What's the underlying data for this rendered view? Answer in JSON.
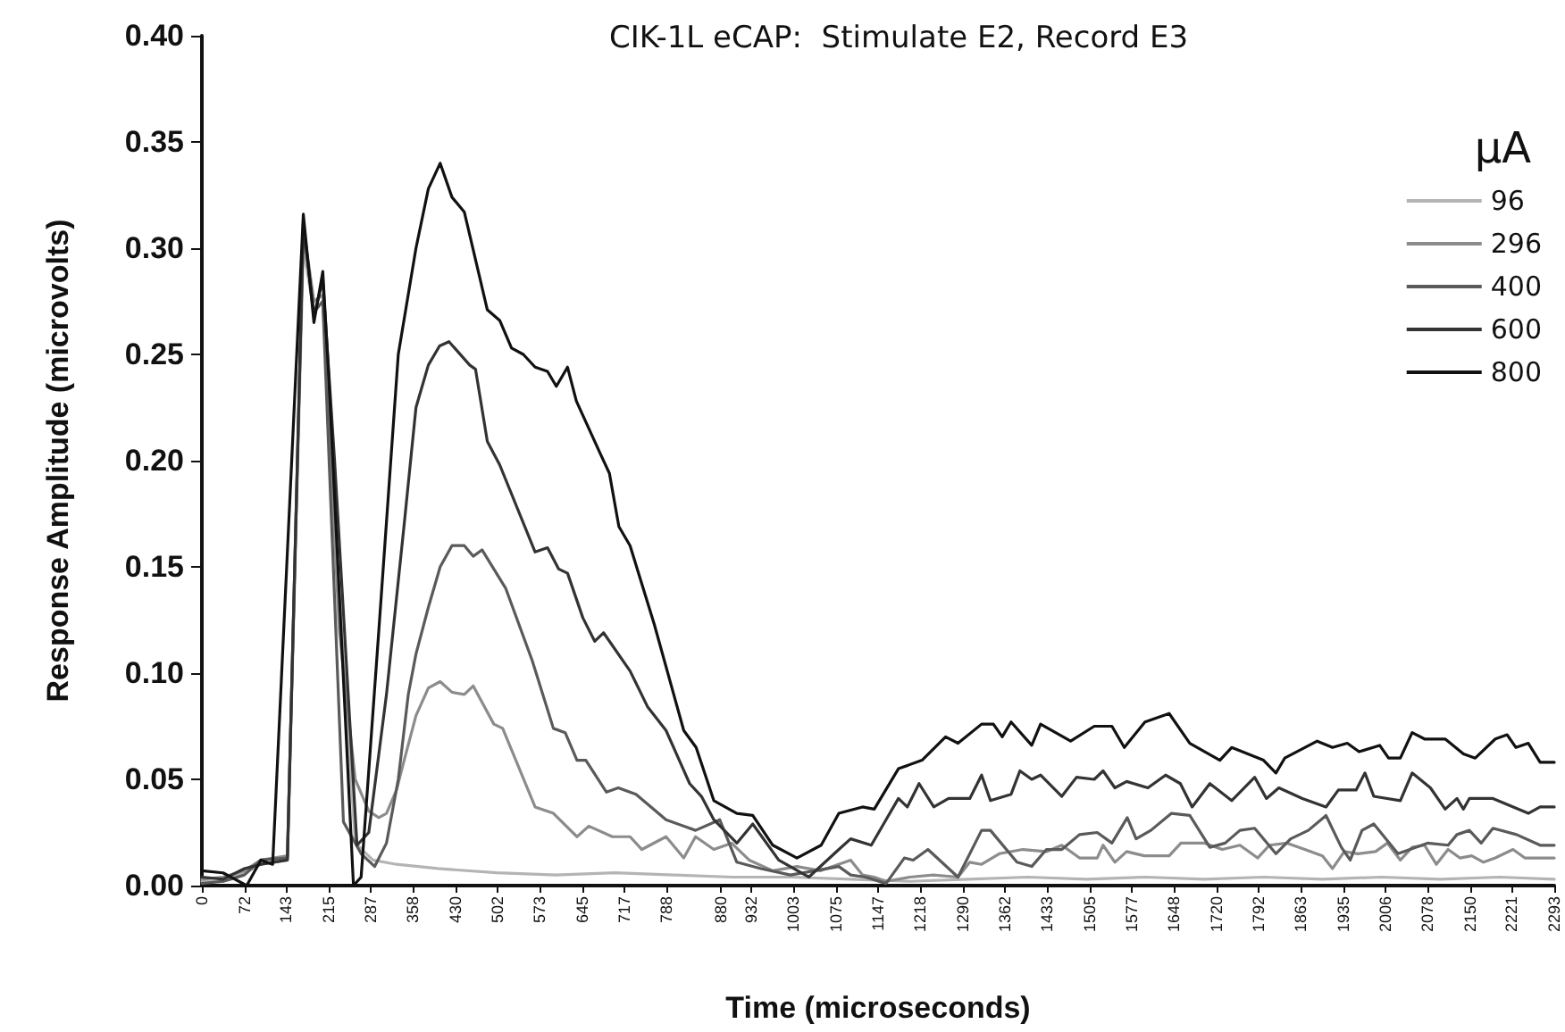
{
  "chart_data": {
    "type": "line",
    "title": "CIK-1L eCAP:  Stimulate E2, Record E3",
    "xlabel": "Time (microseconds)",
    "ylabel": "Response Amplitude (microvolts)",
    "legend_title": "μA",
    "legend": "top right",
    "grid": false,
    "marker": "none",
    "line_style": "solid",
    "xlim": [
      0,
      2293
    ],
    "ylim": [
      0,
      0.4
    ],
    "xticks": [
      0,
      72,
      143,
      215,
      287,
      358,
      430,
      502,
      573,
      645,
      717,
      788,
      880,
      932,
      1003,
      1075,
      1147,
      1218,
      1290,
      1362,
      1433,
      1505,
      1577,
      1648,
      1720,
      1792,
      1863,
      1935,
      2006,
      2078,
      2150,
      2221,
      2293
    ],
    "yticks": [
      {
        "value": 0,
        "label": "0.00"
      },
      0.05,
      {
        "value": 0.1,
        "label": "0.10"
      },
      0.15,
      {
        "value": 0.2,
        "label": "0.20"
      },
      0.25,
      {
        "value": 0.3,
        "label": "0.30"
      },
      0.35,
      {
        "value": 0.4,
        "label": "0.40"
      }
    ],
    "series": [
      {
        "name": "96",
        "color": "#b4b4b4",
        "x": [
          0,
          36,
          72,
          100,
          145,
          172,
          190,
          205,
          230,
          260,
          290,
          330,
          400,
          500,
          600,
          700,
          800,
          900,
          1000,
          1100,
          1200,
          1300,
          1400,
          1500,
          1600,
          1700,
          1800,
          1900,
          2000,
          2100,
          2200,
          2293
        ],
        "values": [
          0.002,
          0.002,
          0.006,
          0.01,
          0.012,
          0.3,
          0.27,
          0.275,
          0.15,
          0.02,
          0.012,
          0.01,
          0.008,
          0.006,
          0.005,
          0.006,
          0.005,
          0.004,
          0.004,
          0.003,
          0.002,
          0.003,
          0.004,
          0.003,
          0.004,
          0.003,
          0.004,
          0.003,
          0.004,
          0.003,
          0.004,
          0.003
        ]
      },
      {
        "name": "296",
        "color": "#8c8c8c",
        "x": [
          0,
          36,
          72,
          100,
          145,
          172,
          190,
          205,
          233,
          260,
          283,
          300,
          313,
          330,
          343,
          363,
          384,
          404,
          424,
          445,
          460,
          495,
          510,
          565,
          596,
          636,
          656,
          696,
          726,
          746,
          787,
          817,
          837,
          868,
          898,
          928,
          968,
          1009,
          1049,
          1100,
          1120,
          1140,
          1160,
          1200,
          1240,
          1282,
          1302,
          1322,
          1352,
          1392,
          1432,
          1458,
          1488,
          1518,
          1528,
          1548,
          1568,
          1598,
          1640,
          1660,
          1700,
          1730,
          1760,
          1790,
          1810,
          1840,
          1870,
          1900,
          1917,
          1937,
          1960,
          1990,
          2010,
          2032,
          2052,
          2073,
          2093,
          2113,
          2133,
          2153,
          2173,
          2193,
          2223,
          2243,
          2293
        ],
        "values": [
          0.003,
          0.004,
          0.007,
          0.012,
          0.014,
          0.31,
          0.275,
          0.278,
          0.12,
          0.05,
          0.035,
          0.032,
          0.034,
          0.045,
          0.059,
          0.08,
          0.093,
          0.096,
          0.091,
          0.09,
          0.094,
          0.076,
          0.074,
          0.037,
          0.034,
          0.023,
          0.028,
          0.023,
          0.023,
          0.017,
          0.023,
          0.013,
          0.023,
          0.017,
          0.02,
          0.012,
          0.007,
          0.009,
          0.007,
          0.012,
          0.005,
          0.004,
          0.002,
          0.004,
          0.005,
          0.004,
          0.011,
          0.01,
          0.015,
          0.017,
          0.016,
          0.019,
          0.013,
          0.013,
          0.019,
          0.011,
          0.016,
          0.014,
          0.014,
          0.02,
          0.02,
          0.017,
          0.019,
          0.013,
          0.019,
          0.02,
          0.017,
          0.014,
          0.008,
          0.016,
          0.015,
          0.016,
          0.02,
          0.012,
          0.018,
          0.019,
          0.01,
          0.017,
          0.013,
          0.014,
          0.011,
          0.013,
          0.017,
          0.013,
          0.013
        ]
      },
      {
        "name": "400",
        "color": "#5a5a5a",
        "x": [
          0,
          36,
          72,
          100,
          145,
          172,
          190,
          205,
          240,
          270,
          293,
          313,
          333,
          350,
          363,
          384,
          404,
          424,
          445,
          460,
          475,
          515,
          560,
          596,
          616,
          636,
          651,
          686,
          706,
          736,
          787,
          837,
          878,
          907,
          948,
          998,
          1080,
          1100,
          1125,
          1160,
          1191,
          1206,
          1231,
          1282,
          1322,
          1337,
          1382,
          1407,
          1432,
          1458,
          1488,
          1518,
          1543,
          1569,
          1584,
          1609,
          1644,
          1675,
          1709,
          1735,
          1760,
          1785,
          1821,
          1846,
          1876,
          1906,
          1932,
          1947,
          1967,
          1987,
          2028,
          2078,
          2113,
          2128,
          2149,
          2169,
          2189,
          2229,
          2269,
          2293
        ],
        "values": [
          0.001,
          0.002,
          0.005,
          0.012,
          0.013,
          0.31,
          0.27,
          0.275,
          0.03,
          0.015,
          0.009,
          0.02,
          0.05,
          0.09,
          0.109,
          0.131,
          0.15,
          0.16,
          0.16,
          0.155,
          0.158,
          0.14,
          0.106,
          0.074,
          0.072,
          0.059,
          0.059,
          0.044,
          0.046,
          0.043,
          0.031,
          0.026,
          0.031,
          0.011,
          0.008,
          0.005,
          0.009,
          0.005,
          0.004,
          0.001,
          0.013,
          0.012,
          0.017,
          0.004,
          0.026,
          0.026,
          0.011,
          0.009,
          0.017,
          0.017,
          0.024,
          0.025,
          0.02,
          0.032,
          0.022,
          0.026,
          0.034,
          0.033,
          0.018,
          0.02,
          0.026,
          0.027,
          0.015,
          0.022,
          0.026,
          0.033,
          0.018,
          0.012,
          0.026,
          0.029,
          0.015,
          0.02,
          0.019,
          0.024,
          0.026,
          0.02,
          0.027,
          0.024,
          0.019,
          0.019
        ]
      },
      {
        "name": "600",
        "color": "#333333",
        "x": [
          0,
          36,
          72,
          100,
          145,
          172,
          190,
          205,
          225,
          263,
          283,
          313,
          343,
          363,
          384,
          403,
          419,
          454,
          464,
          484,
          505,
          565,
          586,
          605,
          620,
          646,
          666,
          681,
          726,
          756,
          787,
          827,
          847,
          868,
          907,
          934,
          978,
          1029,
          1080,
          1100,
          1135,
          1160,
          1181,
          1196,
          1216,
          1241,
          1266,
          1302,
          1322,
          1337,
          1372,
          1387,
          1407,
          1422,
          1458,
          1483,
          1513,
          1528,
          1548,
          1568,
          1604,
          1634,
          1659,
          1679,
          1709,
          1746,
          1785,
          1805,
          1826,
          1866,
          1906,
          1927,
          1957,
          1972,
          1987,
          2032,
          2052,
          2083,
          2108,
          2128,
          2139,
          2149,
          2189,
          2249,
          2269,
          2293
        ],
        "values": [
          0.004,
          0.003,
          0.008,
          0.01,
          0.012,
          0.312,
          0.268,
          0.285,
          0.2,
          0.019,
          0.025,
          0.09,
          0.17,
          0.225,
          0.245,
          0.254,
          0.256,
          0.245,
          0.243,
          0.209,
          0.198,
          0.157,
          0.159,
          0.149,
          0.147,
          0.126,
          0.115,
          0.119,
          0.101,
          0.084,
          0.073,
          0.048,
          0.042,
          0.031,
          0.02,
          0.029,
          0.012,
          0.004,
          0.017,
          0.022,
          0.019,
          0.031,
          0.041,
          0.037,
          0.048,
          0.037,
          0.041,
          0.041,
          0.052,
          0.04,
          0.043,
          0.054,
          0.05,
          0.052,
          0.042,
          0.051,
          0.05,
          0.054,
          0.046,
          0.049,
          0.046,
          0.052,
          0.048,
          0.037,
          0.048,
          0.04,
          0.051,
          0.041,
          0.046,
          0.041,
          0.037,
          0.045,
          0.045,
          0.053,
          0.042,
          0.04,
          0.053,
          0.046,
          0.036,
          0.041,
          0.036,
          0.041,
          0.041,
          0.034,
          0.037,
          0.037
        ]
      },
      {
        "name": "800",
        "color": "#111111",
        "x": [
          0,
          36,
          76,
          100,
          120,
          172,
          190,
          205,
          215,
          257,
          270,
          300,
          333,
          363,
          384,
          404,
          424,
          445,
          484,
          505,
          525,
          545,
          565,
          586,
          601,
          620,
          635,
          676,
          691,
          707,
          726,
          767,
          817,
          838,
          868,
          907,
          934,
          968,
          1009,
          1050,
          1080,
          1120,
          1140,
          1181,
          1221,
          1261,
          1282,
          1322,
          1342,
          1357,
          1372,
          1407,
          1422,
          1473,
          1513,
          1543,
          1564,
          1599,
          1640,
          1675,
          1726,
          1746,
          1800,
          1821,
          1836,
          1891,
          1917,
          1942,
          1962,
          1997,
          2012,
          2032,
          2052,
          2073,
          2108,
          2139,
          2159,
          2193,
          2213,
          2228,
          2249,
          2269,
          2293
        ],
        "values": [
          0.007,
          0.006,
          0,
          0.012,
          0.01,
          0.316,
          0.265,
          0.289,
          0.24,
          0,
          0.004,
          0.12,
          0.25,
          0.3,
          0.328,
          0.34,
          0.324,
          0.317,
          0.271,
          0.266,
          0.253,
          0.25,
          0.244,
          0.242,
          0.235,
          0.244,
          0.228,
          0.203,
          0.194,
          0.169,
          0.16,
          0.123,
          0.073,
          0.065,
          0.04,
          0.034,
          0.033,
          0.019,
          0.013,
          0.019,
          0.034,
          0.037,
          0.036,
          0.055,
          0.059,
          0.07,
          0.067,
          0.076,
          0.076,
          0.07,
          0.077,
          0.066,
          0.076,
          0.068,
          0.075,
          0.075,
          0.065,
          0.077,
          0.081,
          0.067,
          0.059,
          0.065,
          0.059,
          0.053,
          0.06,
          0.068,
          0.065,
          0.067,
          0.063,
          0.066,
          0.06,
          0.06,
          0.072,
          0.069,
          0.069,
          0.062,
          0.06,
          0.069,
          0.071,
          0.065,
          0.067,
          0.058,
          0.058
        ]
      }
    ]
  }
}
